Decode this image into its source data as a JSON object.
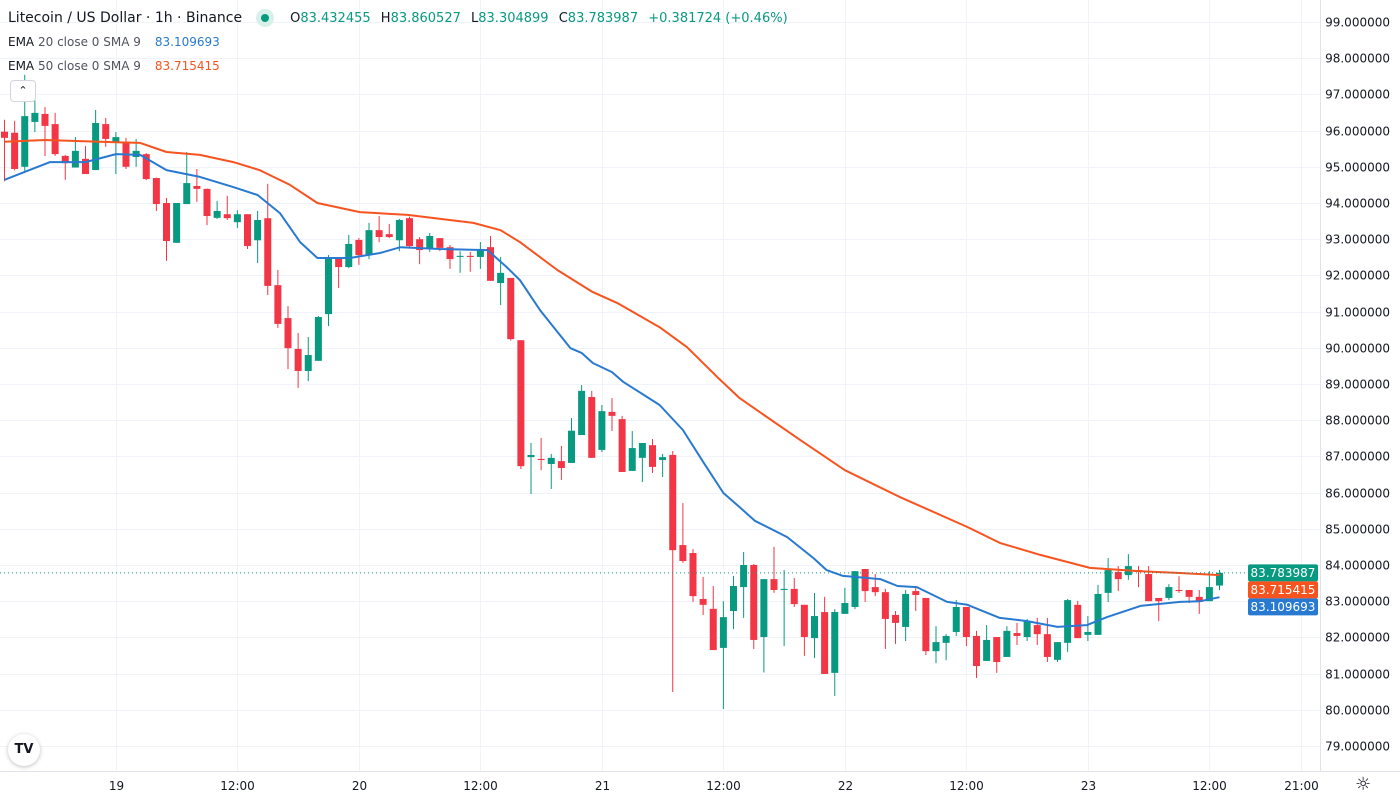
{
  "header": {
    "title": "Litecoin / US Dollar · 1h · Binance",
    "open_label": "O",
    "open": "83.432455",
    "high_label": "H",
    "high": "83.860527",
    "low_label": "L",
    "low": "83.304899",
    "close_label": "C",
    "close": "83.783987",
    "change": "+0.381724 (+0.46%)"
  },
  "indicators": [
    {
      "name": "EMA",
      "params": "20 close 0 SMA 9",
      "value": "83.109693",
      "color": "#2879d0"
    },
    {
      "name": "EMA",
      "params": "50 close 0 SMA 9",
      "value": "83.715415",
      "color": "#f7531f"
    }
  ],
  "collapse_icon": "chevron-up-icon",
  "logo_text": "TV",
  "settings_icon": "gear-icon",
  "colors": {
    "up": "#089981",
    "down": "#f23645",
    "grid": "#f0f3fa",
    "ema20": "#2879d0",
    "ema50": "#f7531f"
  },
  "chart_data": {
    "type": "candlestick",
    "title": "Litecoin / US Dollar · 1h · Binance",
    "ylim": [
      78.6,
      99.6
    ],
    "y_ticks": [
      "99.000000",
      "98.000000",
      "97.000000",
      "96.000000",
      "95.000000",
      "94.000000",
      "93.000000",
      "92.000000",
      "91.000000",
      "90.000000",
      "89.000000",
      "88.000000",
      "87.000000",
      "86.000000",
      "85.000000",
      "84.000000",
      "83.000000",
      "82.000000",
      "81.000000",
      "80.000000",
      "79.000000"
    ],
    "x_ticks": [
      {
        "i": 11,
        "label": "19"
      },
      {
        "i": 23,
        "label": "12:00"
      },
      {
        "i": 35,
        "label": "20"
      },
      {
        "i": 47,
        "label": "12:00"
      },
      {
        "i": 59,
        "label": "21"
      },
      {
        "i": 71,
        "label": "12:00"
      },
      {
        "i": 83,
        "label": "22"
      },
      {
        "i": 95,
        "label": "12:00"
      },
      {
        "i": 107,
        "label": "23"
      },
      {
        "i": 119,
        "label": "12:00"
      },
      {
        "i": 128,
        "label": "21:00"
      }
    ],
    "ohlc_fields": [
      "open",
      "high",
      "low",
      "close"
    ],
    "candles": [
      [
        95.97,
        96.3,
        94.6,
        95.8
      ],
      [
        95.94,
        96.27,
        94.9,
        94.94
      ],
      [
        95.0,
        97.54,
        94.86,
        96.4
      ],
      [
        96.24,
        97.26,
        95.96,
        96.49
      ],
      [
        96.46,
        96.65,
        95.3,
        96.13
      ],
      [
        96.18,
        96.49,
        95.3,
        95.35
      ],
      [
        95.3,
        95.33,
        94.64,
        95.1
      ],
      [
        94.98,
        95.82,
        94.98,
        95.44
      ],
      [
        95.22,
        95.57,
        94.8,
        94.8
      ],
      [
        94.91,
        96.57,
        94.91,
        96.21
      ],
      [
        96.18,
        96.35,
        95.55,
        95.77
      ],
      [
        95.66,
        95.96,
        94.8,
        95.82
      ],
      [
        95.66,
        95.8,
        94.94,
        95.0
      ],
      [
        95.27,
        95.77,
        95.0,
        95.44
      ],
      [
        95.35,
        95.38,
        94.63,
        94.66
      ],
      [
        94.69,
        94.7,
        93.78,
        93.97
      ],
      [
        94.0,
        94.14,
        92.4,
        92.95
      ],
      [
        92.9,
        94.0,
        92.9,
        94.0
      ],
      [
        93.97,
        95.41,
        93.97,
        94.55
      ],
      [
        94.47,
        94.94,
        94.03,
        94.39
      ],
      [
        94.39,
        94.4,
        93.39,
        93.64
      ],
      [
        93.59,
        94.06,
        93.56,
        93.78
      ],
      [
        93.69,
        94.2,
        93.53,
        93.58
      ],
      [
        93.47,
        93.8,
        93.31,
        93.69
      ],
      [
        93.69,
        93.69,
        92.73,
        92.81
      ],
      [
        92.97,
        93.78,
        92.34,
        93.53
      ],
      [
        93.58,
        94.53,
        91.46,
        91.71
      ],
      [
        91.73,
        92.15,
        90.55,
        90.66
      ],
      [
        90.82,
        91.15,
        89.41,
        89.99
      ],
      [
        89.97,
        90.41,
        88.89,
        89.36
      ],
      [
        89.36,
        90.3,
        89.08,
        89.8
      ],
      [
        89.64,
        90.88,
        89.64,
        90.85
      ],
      [
        90.93,
        92.56,
        90.6,
        92.48
      ],
      [
        92.48,
        92.48,
        91.65,
        92.23
      ],
      [
        92.23,
        93.12,
        92.2,
        92.87
      ],
      [
        92.98,
        93.03,
        92.29,
        92.56
      ],
      [
        92.56,
        93.45,
        92.45,
        93.25
      ],
      [
        93.25,
        93.64,
        92.92,
        93.06
      ],
      [
        93.14,
        93.42,
        93.03,
        93.06
      ],
      [
        92.97,
        93.56,
        92.67,
        93.53
      ],
      [
        93.58,
        93.62,
        92.74,
        92.81
      ],
      [
        93.0,
        93.06,
        92.31,
        92.7
      ],
      [
        92.73,
        93.17,
        92.65,
        93.09
      ],
      [
        93.03,
        93.03,
        92.67,
        92.76
      ],
      [
        92.78,
        92.84,
        92.18,
        92.45
      ],
      [
        92.51,
        92.67,
        92.07,
        92.54
      ],
      [
        92.54,
        92.65,
        92.1,
        92.51
      ],
      [
        92.51,
        92.92,
        92.18,
        92.73
      ],
      [
        92.78,
        93.09,
        91.85,
        91.85
      ],
      [
        91.79,
        92.51,
        91.18,
        92.07
      ],
      [
        91.93,
        91.93,
        90.2,
        90.24
      ],
      [
        90.21,
        90.21,
        86.65,
        86.73
      ],
      [
        86.98,
        87.37,
        85.96,
        87.04
      ],
      [
        86.93,
        87.51,
        86.62,
        86.9
      ],
      [
        86.79,
        87.07,
        86.1,
        86.96
      ],
      [
        86.87,
        87.29,
        86.35,
        86.68
      ],
      [
        86.82,
        88.06,
        86.82,
        87.71
      ],
      [
        87.59,
        88.97,
        87.59,
        88.81
      ],
      [
        88.64,
        88.81,
        86.96,
        86.96
      ],
      [
        87.18,
        88.42,
        87.12,
        88.25
      ],
      [
        88.23,
        88.61,
        87.7,
        88.12
      ],
      [
        88.03,
        88.12,
        86.57,
        86.57
      ],
      [
        86.6,
        87.7,
        86.6,
        87.23
      ],
      [
        86.96,
        87.37,
        86.29,
        87.37
      ],
      [
        87.31,
        87.48,
        86.54,
        86.71
      ],
      [
        86.9,
        87.07,
        86.43,
        86.98
      ],
      [
        87.04,
        87.15,
        80.49,
        84.41
      ],
      [
        84.55,
        85.71,
        84.06,
        84.11
      ],
      [
        84.33,
        84.44,
        82.98,
        83.14
      ],
      [
        83.06,
        83.67,
        82.62,
        82.9
      ],
      [
        82.79,
        83.42,
        81.65,
        81.65
      ],
      [
        81.71,
        83.0,
        80.02,
        82.56
      ],
      [
        82.73,
        83.7,
        82.23,
        83.42
      ],
      [
        83.39,
        84.36,
        82.54,
        84.0
      ],
      [
        84.0,
        84.03,
        81.68,
        81.93
      ],
      [
        82.01,
        83.61,
        81.03,
        83.61
      ],
      [
        83.61,
        84.5,
        83.23,
        83.31
      ],
      [
        83.31,
        83.86,
        81.76,
        83.34
      ],
      [
        83.34,
        83.64,
        82.84,
        82.92
      ],
      [
        82.9,
        82.9,
        81.49,
        82.01
      ],
      [
        81.98,
        83.23,
        81.43,
        82.59
      ],
      [
        82.7,
        83.12,
        80.99,
        80.99
      ],
      [
        81.02,
        82.78,
        80.38,
        82.7
      ],
      [
        82.65,
        83.37,
        82.65,
        82.95
      ],
      [
        82.84,
        83.83,
        82.78,
        83.83
      ],
      [
        83.89,
        83.89,
        82.98,
        83.28
      ],
      [
        83.39,
        83.75,
        83.14,
        83.25
      ],
      [
        83.25,
        83.34,
        81.68,
        82.51
      ],
      [
        82.62,
        82.73,
        81.82,
        82.4
      ],
      [
        82.29,
        83.31,
        81.9,
        83.2
      ],
      [
        83.28,
        83.42,
        82.73,
        83.17
      ],
      [
        83.09,
        83.09,
        81.51,
        81.62
      ],
      [
        81.62,
        82.31,
        81.29,
        81.87
      ],
      [
        81.85,
        82.09,
        81.37,
        82.04
      ],
      [
        82.15,
        83.03,
        82.04,
        82.84
      ],
      [
        82.84,
        82.84,
        81.76,
        82.01
      ],
      [
        82.04,
        82.18,
        80.88,
        81.21
      ],
      [
        81.35,
        82.34,
        81.35,
        81.93
      ],
      [
        82.01,
        82.01,
        81.02,
        81.32
      ],
      [
        81.46,
        82.31,
        81.46,
        82.18
      ],
      [
        82.12,
        82.4,
        81.79,
        82.04
      ],
      [
        82.01,
        82.51,
        81.9,
        82.45
      ],
      [
        82.34,
        82.54,
        81.79,
        82.09
      ],
      [
        82.09,
        82.54,
        81.32,
        81.46
      ],
      [
        81.38,
        81.87,
        81.32,
        81.87
      ],
      [
        81.85,
        83.06,
        81.6,
        83.03
      ],
      [
        82.9,
        83.01,
        81.98,
        81.98
      ],
      [
        82.07,
        82.59,
        81.9,
        82.15
      ],
      [
        82.07,
        83.45,
        82.07,
        83.2
      ],
      [
        83.23,
        84.19,
        82.98,
        83.86
      ],
      [
        83.81,
        83.97,
        83.28,
        83.61
      ],
      [
        83.72,
        84.3,
        83.59,
        83.97
      ],
      [
        83.86,
        83.97,
        83.39,
        83.81
      ],
      [
        83.75,
        83.97,
        83.0,
        83.0
      ],
      [
        83.09,
        83.09,
        82.45,
        83.0
      ],
      [
        83.09,
        83.47,
        83.03,
        83.39
      ],
      [
        83.31,
        83.69,
        83.23,
        83.28
      ],
      [
        83.31,
        83.31,
        82.95,
        83.12
      ],
      [
        83.12,
        83.31,
        82.65,
        82.98
      ],
      [
        83.0,
        83.83,
        83.0,
        83.39
      ],
      [
        83.432455,
        83.860527,
        83.304899,
        83.783987
      ]
    ],
    "series": [
      {
        "name": "EMA 20",
        "points": [
          [
            0,
            94.64
          ],
          [
            3,
            94.97
          ],
          [
            4.5,
            95.13
          ],
          [
            8,
            95.13
          ],
          [
            11,
            95.35
          ],
          [
            13.4,
            95.33
          ],
          [
            16,
            94.91
          ],
          [
            19.3,
            94.72
          ],
          [
            22.6,
            94.44
          ],
          [
            25,
            94.22
          ],
          [
            27.2,
            93.72
          ],
          [
            29.2,
            92.92
          ],
          [
            30.9,
            92.48
          ],
          [
            34.1,
            92.48
          ],
          [
            37.1,
            92.62
          ],
          [
            39.1,
            92.78
          ],
          [
            43,
            92.73
          ],
          [
            47.7,
            92.7
          ],
          [
            49.6,
            92.23
          ],
          [
            50.9,
            91.87
          ],
          [
            52.9,
            91.04
          ],
          [
            55.9,
            89.99
          ],
          [
            57,
            89.86
          ],
          [
            58.1,
            89.58
          ],
          [
            60,
            89.33
          ],
          [
            61.1,
            89.06
          ],
          [
            64.7,
            88.42
          ],
          [
            67,
            87.73
          ],
          [
            69,
            86.85
          ],
          [
            71,
            85.99
          ],
          [
            72.6,
            85.6
          ],
          [
            74.1,
            85.22
          ],
          [
            77.3,
            84.77
          ],
          [
            79.9,
            84.19
          ],
          [
            81.2,
            83.86
          ],
          [
            82.8,
            83.7
          ],
          [
            86.5,
            83.61
          ],
          [
            88.2,
            83.42
          ],
          [
            90.1,
            83.39
          ],
          [
            93.1,
            82.98
          ],
          [
            95.1,
            82.9
          ],
          [
            98.3,
            82.54
          ],
          [
            101,
            82.45
          ],
          [
            104,
            82.29
          ],
          [
            106.9,
            82.34
          ],
          [
            108.9,
            82.56
          ],
          [
            112.2,
            82.87
          ],
          [
            116.1,
            82.98
          ],
          [
            118.1,
            83.0
          ],
          [
            120,
            83.11
          ]
        ]
      },
      {
        "name": "EMA 50",
        "points": [
          [
            0,
            95.69
          ],
          [
            4,
            95.74
          ],
          [
            9.4,
            95.69
          ],
          [
            13.4,
            95.66
          ],
          [
            16,
            95.41
          ],
          [
            19.3,
            95.33
          ],
          [
            22.6,
            95.13
          ],
          [
            25.2,
            94.91
          ],
          [
            28.2,
            94.5
          ],
          [
            30.9,
            94.0
          ],
          [
            35.1,
            93.75
          ],
          [
            39.8,
            93.67
          ],
          [
            46.3,
            93.45
          ],
          [
            49,
            93.25
          ],
          [
            50.9,
            92.92
          ],
          [
            54.6,
            92.15
          ],
          [
            58.1,
            91.54
          ],
          [
            60.5,
            91.24
          ],
          [
            64.7,
            90.57
          ],
          [
            67.4,
            90.02
          ],
          [
            70.4,
            89.19
          ],
          [
            72.6,
            88.61
          ],
          [
            78.6,
            87.45
          ],
          [
            83,
            86.62
          ],
          [
            88.4,
            85.88
          ],
          [
            95.1,
            85.05
          ],
          [
            98.3,
            84.61
          ],
          [
            102.3,
            84.28
          ],
          [
            107.2,
            83.92
          ],
          [
            112.2,
            83.83
          ],
          [
            116.1,
            83.78
          ],
          [
            120,
            83.72
          ]
        ]
      }
    ],
    "price_tags": [
      {
        "label": "83.783987",
        "value": 83.783987,
        "color": "#089981"
      },
      {
        "label": "83.715415",
        "value": 83.715415,
        "color": "#f7531f"
      },
      {
        "label": "83.109693",
        "value": 83.109693,
        "color": "#2879d0"
      }
    ],
    "last_price": 83.783987,
    "grid": true
  }
}
